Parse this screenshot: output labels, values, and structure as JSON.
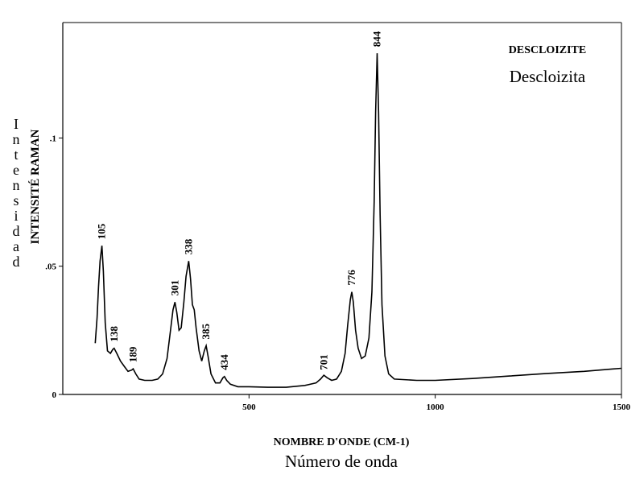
{
  "chart_data": {
    "type": "line",
    "title": "DESCLOIZITE",
    "subtitle": "Descloizita",
    "xlabel": "NOMBRE D'ONDE (CM-1)",
    "xlabel_secondary": "Número de onda",
    "ylabel": "INTENSITÉ RAMAN",
    "ylabel_secondary": "Intensidad",
    "xlim": [
      0,
      1500
    ],
    "ylim": [
      0,
      0.145
    ],
    "x_ticks": [
      {
        "value": 500,
        "label": "500"
      },
      {
        "value": 1000,
        "label": "1000"
      },
      {
        "value": 1500,
        "label": "1500"
      }
    ],
    "y_ticks": [
      {
        "value": 0,
        "label": "0"
      },
      {
        "value": 0.05,
        "label": ".05"
      },
      {
        "value": 0.1,
        "label": ".1"
      }
    ],
    "grid": false,
    "legend": "none",
    "peaks": [
      {
        "x": 105,
        "y": 0.058,
        "label": "105"
      },
      {
        "x": 138,
        "y": 0.018,
        "label": "138"
      },
      {
        "x": 189,
        "y": 0.01,
        "label": "189"
      },
      {
        "x": 301,
        "y": 0.036,
        "label": "301"
      },
      {
        "x": 338,
        "y": 0.052,
        "label": "338"
      },
      {
        "x": 385,
        "y": 0.019,
        "label": "385"
      },
      {
        "x": 434,
        "y": 0.007,
        "label": "434"
      },
      {
        "x": 701,
        "y": 0.007,
        "label": "701"
      },
      {
        "x": 776,
        "y": 0.04,
        "label": "776"
      },
      {
        "x": 844,
        "y": 0.133,
        "label": "844"
      }
    ],
    "series": [
      {
        "points": [
          [
            87,
            0.02
          ],
          [
            92,
            0.03
          ],
          [
            96,
            0.042
          ],
          [
            100,
            0.052
          ],
          [
            105,
            0.058
          ],
          [
            109,
            0.048
          ],
          [
            114,
            0.028
          ],
          [
            120,
            0.017
          ],
          [
            128,
            0.016
          ],
          [
            134,
            0.0175
          ],
          [
            138,
            0.018
          ],
          [
            145,
            0.016
          ],
          [
            155,
            0.013
          ],
          [
            165,
            0.011
          ],
          [
            175,
            0.009
          ],
          [
            185,
            0.0095
          ],
          [
            189,
            0.01
          ],
          [
            196,
            0.008
          ],
          [
            205,
            0.006
          ],
          [
            220,
            0.0055
          ],
          [
            240,
            0.0055
          ],
          [
            255,
            0.006
          ],
          [
            268,
            0.008
          ],
          [
            280,
            0.014
          ],
          [
            290,
            0.026
          ],
          [
            296,
            0.033
          ],
          [
            301,
            0.036
          ],
          [
            306,
            0.032
          ],
          [
            312,
            0.025
          ],
          [
            318,
            0.026
          ],
          [
            325,
            0.036
          ],
          [
            331,
            0.046
          ],
          [
            338,
            0.052
          ],
          [
            343,
            0.045
          ],
          [
            348,
            0.035
          ],
          [
            353,
            0.033
          ],
          [
            358,
            0.026
          ],
          [
            366,
            0.017
          ],
          [
            373,
            0.013
          ],
          [
            380,
            0.017
          ],
          [
            385,
            0.019
          ],
          [
            390,
            0.015
          ],
          [
            398,
            0.008
          ],
          [
            410,
            0.0045
          ],
          [
            422,
            0.0045
          ],
          [
            430,
            0.0065
          ],
          [
            434,
            0.007
          ],
          [
            440,
            0.0055
          ],
          [
            450,
            0.004
          ],
          [
            470,
            0.003
          ],
          [
            500,
            0.003
          ],
          [
            550,
            0.0028
          ],
          [
            600,
            0.0028
          ],
          [
            650,
            0.0035
          ],
          [
            680,
            0.0045
          ],
          [
            692,
            0.006
          ],
          [
            701,
            0.0075
          ],
          [
            710,
            0.0065
          ],
          [
            722,
            0.0055
          ],
          [
            735,
            0.006
          ],
          [
            748,
            0.009
          ],
          [
            758,
            0.016
          ],
          [
            765,
            0.027
          ],
          [
            772,
            0.037
          ],
          [
            776,
            0.04
          ],
          [
            780,
            0.036
          ],
          [
            786,
            0.025
          ],
          [
            793,
            0.018
          ],
          [
            802,
            0.014
          ],
          [
            812,
            0.015
          ],
          [
            822,
            0.022
          ],
          [
            830,
            0.04
          ],
          [
            836,
            0.075
          ],
          [
            840,
            0.11
          ],
          [
            844,
            0.133
          ],
          [
            848,
            0.11
          ],
          [
            852,
            0.07
          ],
          [
            857,
            0.035
          ],
          [
            865,
            0.015
          ],
          [
            875,
            0.008
          ],
          [
            890,
            0.006
          ],
          [
            950,
            0.0055
          ],
          [
            1000,
            0.0055
          ],
          [
            1100,
            0.0062
          ],
          [
            1200,
            0.0072
          ],
          [
            1300,
            0.0082
          ],
          [
            1400,
            0.009
          ],
          [
            1500,
            0.0102
          ]
        ]
      }
    ]
  }
}
